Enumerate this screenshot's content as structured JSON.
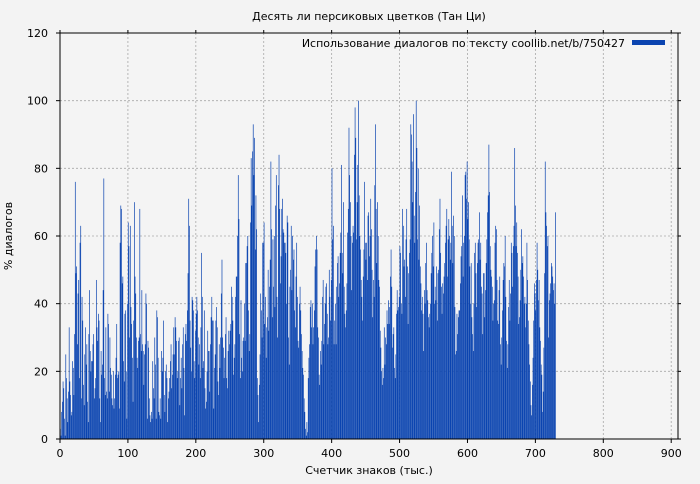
{
  "chart_data": {
    "type": "bar",
    "title": "Десять ли персиковых цветков (Тан Ци)",
    "xlabel": "Счетчик знаков (тыс.)",
    "ylabel": "% диалогов",
    "xlim": [
      0,
      910
    ],
    "ylim": [
      0,
      120
    ],
    "xticks": [
      0,
      100,
      200,
      300,
      400,
      500,
      600,
      700,
      800,
      900
    ],
    "yticks": [
      0,
      20,
      40,
      60,
      80,
      100,
      120
    ],
    "grid": true,
    "legend_position": "top-right",
    "series": [
      {
        "name": "Использование диалогов по тексту coollib.net/b/750427",
        "color": "#0b44b0",
        "x_start": 0,
        "x_step": 1,
        "values": [
          3,
          1,
          8,
          11,
          17,
          15,
          6,
          1,
          25,
          18,
          12,
          5,
          14,
          33,
          17,
          13,
          7,
          8,
          23,
          21,
          13,
          31,
          76,
          49,
          51,
          28,
          43,
          47,
          18,
          58,
          63,
          12,
          42,
          35,
          16,
          10,
          25,
          33,
          22,
          28,
          11,
          5,
          31,
          44,
          26,
          20,
          23,
          23,
          28,
          31,
          12,
          15,
          18,
          47,
          33,
          29,
          37,
          35,
          12,
          5,
          26,
          19,
          22,
          44,
          77,
          18,
          13,
          33,
          14,
          12,
          37,
          34,
          14,
          30,
          21,
          19,
          12,
          10,
          20,
          9,
          12,
          19,
          24,
          34,
          18,
          19,
          20,
          9,
          58,
          69,
          68,
          46,
          48,
          23,
          17,
          37,
          38,
          20,
          6,
          40,
          64,
          57,
          30,
          63,
          39,
          34,
          24,
          11,
          35,
          70,
          48,
          43,
          30,
          24,
          21,
          29,
          30,
          68,
          31,
          26,
          44,
          28,
          26,
          16,
          25,
          28,
          43,
          40,
          6,
          29,
          27,
          12,
          7,
          5,
          8,
          6,
          23,
          15,
          12,
          30,
          22,
          6,
          38,
          36,
          24,
          8,
          7,
          12,
          6,
          26,
          20,
          24,
          35,
          13,
          8,
          20,
          22,
          18,
          5,
          12,
          14,
          18,
          23,
          28,
          15,
          19,
          25,
          33,
          25,
          36,
          33,
          29,
          18,
          20,
          29,
          30,
          10,
          18,
          24,
          15,
          28,
          33,
          21,
          7,
          31,
          34,
          29,
          38,
          49,
          71,
          63,
          35,
          27,
          20,
          42,
          41,
          38,
          23,
          18,
          32,
          37,
          42,
          38,
          30,
          22,
          28,
          18,
          33,
          55,
          42,
          21,
          23,
          38,
          15,
          9,
          11,
          20,
          32,
          26,
          26,
          14,
          28,
          36,
          42,
          35,
          35,
          9,
          21,
          25,
          35,
          39,
          33,
          17,
          13,
          28,
          21,
          30,
          43,
          53,
          30,
          27,
          18,
          24,
          31,
          36,
          18,
          15,
          26,
          32,
          28,
          32,
          34,
          45,
          42,
          35,
          19,
          24,
          28,
          42,
          48,
          48,
          60,
          78,
          65,
          31,
          18,
          41,
          24,
          20,
          29,
          30,
          40,
          29,
          52,
          52,
          57,
          60,
          38,
          26,
          31,
          64,
          83,
          69,
          85,
          93,
          78,
          89,
          56,
          72,
          62,
          18,
          13,
          5,
          16,
          25,
          43,
          38,
          30,
          58,
          58,
          64,
          34,
          42,
          24,
          33,
          36,
          50,
          32,
          45,
          53,
          82,
          62,
          36,
          59,
          45,
          60,
          39,
          69,
          78,
          42,
          30,
          75,
          84,
          68,
          46,
          54,
          68,
          71,
          62,
          61,
          58,
          58,
          55,
          40,
          66,
          64,
          30,
          22,
          45,
          50,
          63,
          44,
          60,
          53,
          56,
          38,
          33,
          48,
          58,
          42,
          29,
          27,
          40,
          45,
          38,
          31,
          26,
          21,
          19,
          12,
          8,
          3,
          1,
          5,
          2,
          18,
          24,
          28,
          39,
          41,
          33,
          40,
          28,
          33,
          38,
          51,
          56,
          60,
          56,
          33,
          30,
          19,
          16,
          26,
          22,
          29,
          42,
          47,
          28,
          34,
          40,
          45,
          46,
          37,
          28,
          30,
          50,
          42,
          35,
          47,
          80,
          59,
          63,
          28,
          35,
          40,
          28,
          45,
          52,
          54,
          42,
          46,
          55,
          61,
          81,
          55,
          49,
          70,
          45,
          37,
          33,
          38,
          46,
          61,
          68,
          92,
          78,
          70,
          60,
          44,
          58,
          63,
          61,
          84,
          98,
          89,
          59,
          70,
          81,
          100,
          72,
          60,
          56,
          47,
          42,
          35,
          48,
          56,
          76,
          58,
          53,
          58,
          47,
          66,
          67,
          54,
          60,
          71,
          62,
          50,
          36,
          47,
          42,
          75,
          93,
          68,
          52,
          70,
          60,
          47,
          45,
          32,
          27,
          20,
          16,
          21,
          18,
          33,
          22,
          30,
          28,
          38,
          34,
          41,
          34,
          39,
          48,
          56,
          45,
          27,
          31,
          33,
          21,
          18,
          25,
          37,
          44,
          38,
          39,
          42,
          57,
          55,
          40,
          37,
          68,
          63,
          51,
          53,
          42,
          59,
          68,
          51,
          34,
          49,
          55,
          59,
          93,
          90,
          82,
          70,
          96,
          66,
          58,
          73,
          100,
          86,
          59,
          80,
          53,
          69,
          51,
          46,
          38,
          42,
          37,
          26,
          44,
          40,
          52,
          58,
          44,
          41,
          36,
          33,
          37,
          40,
          49,
          55,
          60,
          51,
          64,
          40,
          45,
          41,
          51,
          35,
          49,
          50,
          62,
          71,
          55,
          45,
          37,
          46,
          43,
          48,
          52,
          58,
          63,
          68,
          48,
          59,
          65,
          60,
          53,
          58,
          79,
          63,
          52,
          66,
          60,
          39,
          25,
          26,
          37,
          31,
          36,
          38,
          38,
          46,
          54,
          57,
          72,
          48,
          58,
          60,
          78,
          79,
          71,
          82,
          65,
          70,
          59,
          51,
          40,
          52,
          36,
          31,
          26,
          40,
          55,
          58,
          49,
          39,
          52,
          58,
          59,
          67,
          53,
          58,
          45,
          43,
          31,
          49,
          49,
          36,
          44,
          52,
          59,
          67,
          72,
          87,
          73,
          57,
          50,
          48,
          45,
          35,
          40,
          41,
          58,
          63,
          62,
          47,
          35,
          34,
          44,
          48,
          28,
          22,
          30,
          38,
          47,
          52,
          51,
          60,
          42,
          29,
          21,
          28,
          39,
          47,
          35,
          43,
          58,
          55,
          45,
          57,
          63,
          86,
          69,
          57,
          64,
          55,
          48,
          34,
          36,
          41,
          50,
          62,
          52,
          54,
          48,
          40,
          42,
          33,
          40,
          58,
          47,
          35,
          28,
          22,
          17,
          10,
          7,
          16,
          24,
          35,
          46,
          43,
          38,
          47,
          58,
          50,
          41,
          47,
          33,
          29,
          22,
          19,
          8,
          14,
          27,
          49,
          82,
          67,
          63,
          57,
          60,
          30,
          41,
          43,
          46,
          52,
          51,
          48,
          44,
          46,
          40,
          67
        ]
      }
    ]
  }
}
